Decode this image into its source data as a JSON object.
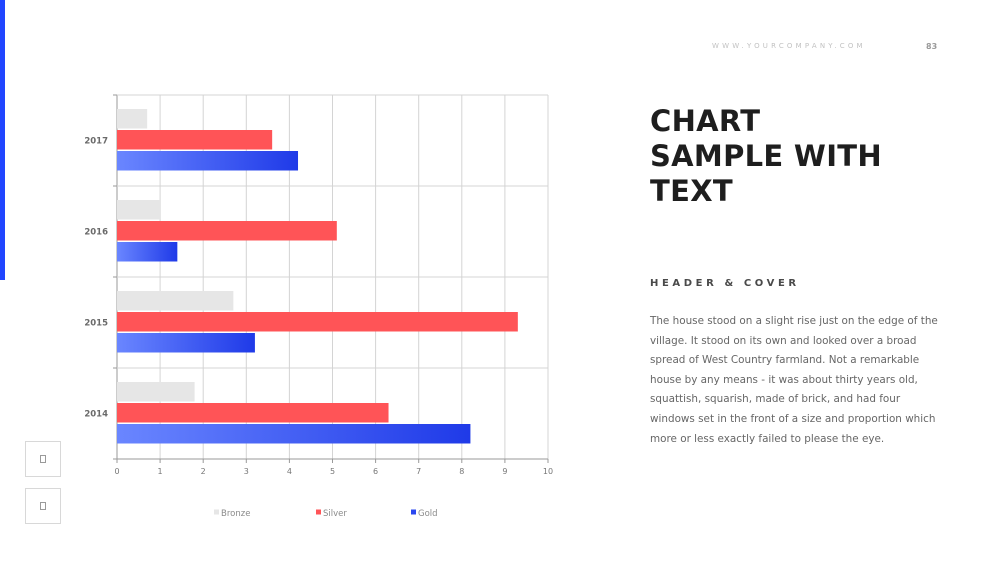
{
  "header": {
    "website": "WWW.YOURCOMPANY.COM",
    "page_number": "83"
  },
  "slide": {
    "title_lines": [
      "CHART",
      "SAMPLE WITH",
      "TEXT"
    ],
    "section_header": "HEADER & COVER",
    "body": "The house stood on a slight rise just on the edge of the village. It stood on its own and looked over a broad spread of West Country farmland. Not a remarkable house by any means - it was about thirty years old, squattish, squarish, made of brick, and had four windows set in the front of a size and proportion which more or less exactly failed to please the eye."
  },
  "nav": {
    "prev_icon": "placeholder-icon",
    "next_icon": "placeholder-icon"
  },
  "colors": {
    "accent": "#2146ff",
    "bronze": "#e6e6e6",
    "silver": "#ff5457",
    "gold": "#2a47f0",
    "title": "#1e1e1e"
  },
  "chart_data": {
    "type": "bar",
    "orientation": "horizontal",
    "categories": [
      "2017",
      "2016",
      "2015",
      "2014"
    ],
    "series": [
      {
        "name": "Bronze",
        "color": "#e6e6e6",
        "values": [
          0.7,
          1.0,
          2.7,
          1.8
        ]
      },
      {
        "name": "Silver",
        "color": "#ff5457",
        "values": [
          3.6,
          5.1,
          9.3,
          6.3
        ]
      },
      {
        "name": "Gold",
        "color": "#2a47f0",
        "values": [
          4.2,
          1.4,
          3.2,
          8.2
        ]
      }
    ],
    "xlim": [
      0,
      10
    ],
    "xticks": [
      "0",
      "1",
      "2",
      "3",
      "4",
      "5",
      "6",
      "7",
      "8",
      "9",
      "10"
    ],
    "grid": true,
    "legend_position": "bottom"
  }
}
